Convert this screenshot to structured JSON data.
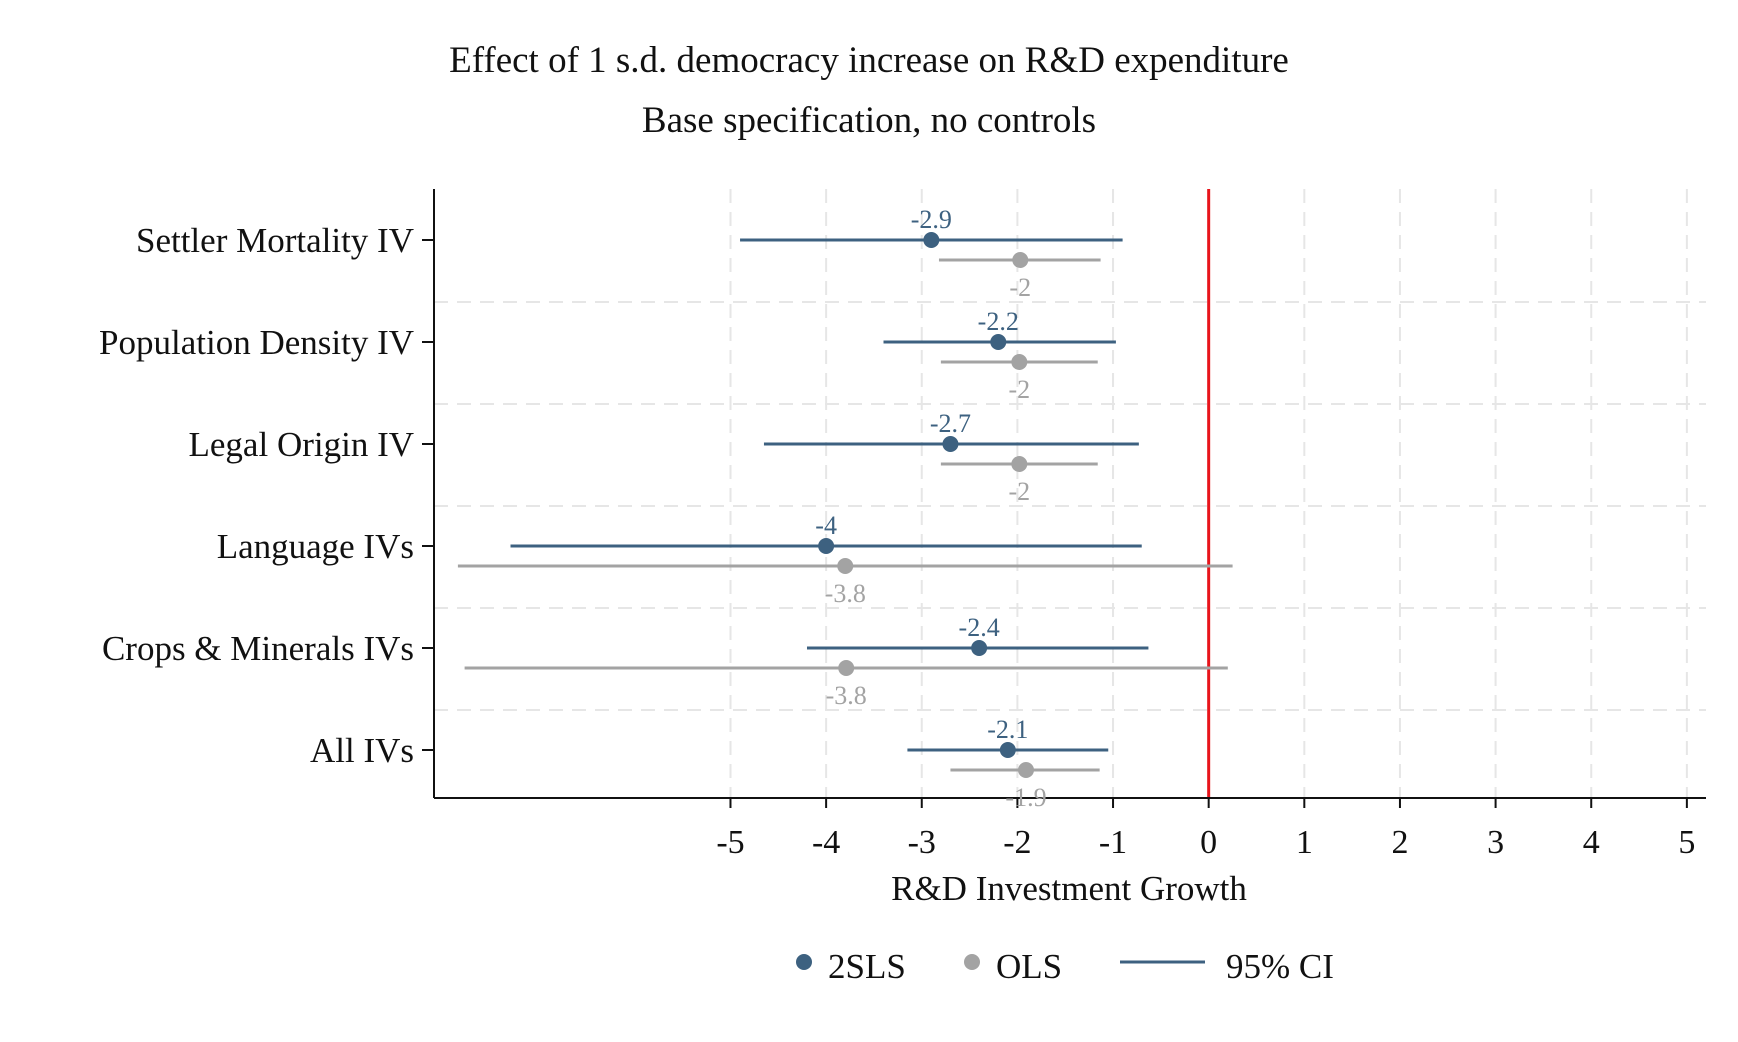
{
  "chart_data": {
    "type": "scatter",
    "title": "Effect of 1 s.d. democracy increase on R&D expenditure",
    "subtitle": "Base specification, no controls",
    "xlabel": "R&D Investment Growth",
    "ylabel": "",
    "xlim": [
      -8.1,
      5.2
    ],
    "xticks": [
      -5,
      -4,
      -3,
      -2,
      -1,
      0,
      1,
      2,
      3,
      4,
      5
    ],
    "xtick_labels": [
      "-5",
      "-4",
      "-3",
      "-2",
      "-1",
      "0",
      "1",
      "2",
      "3",
      "4",
      "5"
    ],
    "reference_line": {
      "x": 0,
      "color": "#e8141b"
    },
    "grid": true,
    "legend_position": "bottom",
    "legend": {
      "point1": "2SLS",
      "point2": "OLS",
      "line": "95% CI"
    },
    "categories": [
      "Settler Mortality IV",
      "Population Density IV",
      "Legal Origin IV",
      "Language IVs",
      "Crops & Minerals IVs",
      "All IVs"
    ],
    "series": [
      {
        "name": "2SLS",
        "color": "#3d6180",
        "estimates": [
          -2.9,
          -2.2,
          -2.7,
          -4.0,
          -2.4,
          -2.1
        ],
        "labels": [
          "-2.9",
          "-2.2",
          "-2.7",
          "-4",
          "-2.4",
          "-2.1"
        ],
        "ci_low": [
          -4.9,
          -3.4,
          -4.65,
          -7.3,
          -4.2,
          -3.15
        ],
        "ci_high": [
          -0.9,
          -0.97,
          -0.73,
          -0.7,
          -0.63,
          -1.05
        ]
      },
      {
        "name": "OLS",
        "color": "#a3a3a3",
        "estimates": [
          -1.97,
          -1.98,
          -1.98,
          -3.8,
          -3.79,
          -1.91
        ],
        "labels": [
          "-2",
          "-2",
          "-2",
          "-3.8",
          "-3.8",
          "-1.9"
        ],
        "ci_low": [
          -2.82,
          -2.8,
          -2.8,
          -7.85,
          -7.78,
          -2.7
        ],
        "ci_high": [
          -1.13,
          -1.16,
          -1.16,
          0.25,
          0.2,
          -1.14
        ]
      }
    ]
  }
}
